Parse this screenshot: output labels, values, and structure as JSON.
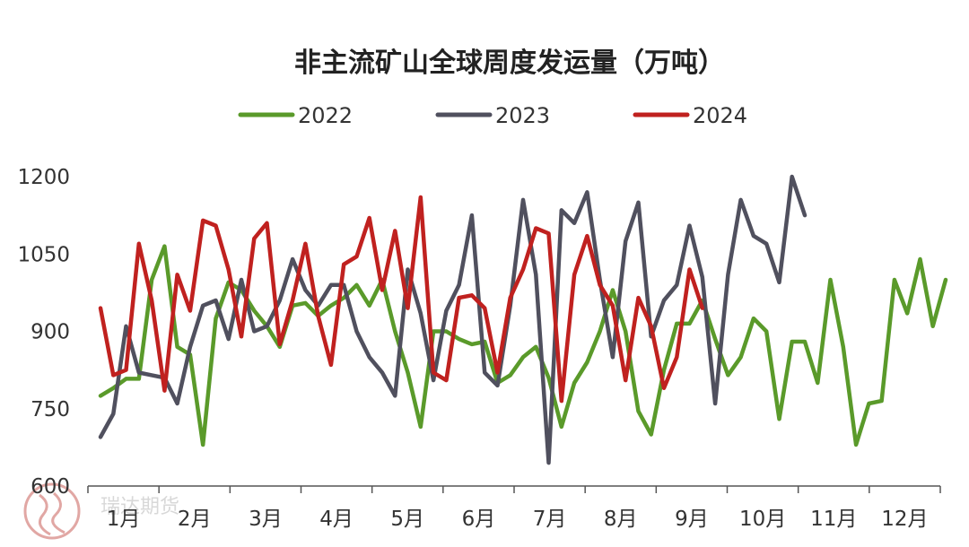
{
  "chart_data": {
    "type": "line",
    "title": "非主流矿山全球周度发运量（万吨）",
    "xlabel": "",
    "ylabel": "",
    "ylim": [
      600,
      1200
    ],
    "yticks": [
      600,
      750,
      900,
      1050,
      1200
    ],
    "x_tick_labels": [
      "1月",
      "2月",
      "3月",
      "4月",
      "5月",
      "6月",
      "7月",
      "8月",
      "9月",
      "10月",
      "11月",
      "12月"
    ],
    "x_weeks": 52,
    "legend_position": "top",
    "grid": false,
    "series": [
      {
        "name": "2022",
        "color": "#5a9a2a",
        "values": [
          775,
          790,
          808,
          808,
          1000,
          1065,
          870,
          855,
          680,
          925,
          995,
          980,
          940,
          910,
          870,
          950,
          955,
          930,
          950,
          965,
          990,
          950,
          1000,
          900,
          820,
          715,
          900,
          900,
          885,
          875,
          880,
          800,
          815,
          850,
          870,
          810,
          715,
          800,
          840,
          900,
          980,
          900,
          745,
          700,
          825,
          915,
          915,
          960,
          885,
          815,
          850,
          925,
          900,
          730,
          880,
          880,
          800,
          1000,
          870,
          680,
          760,
          765,
          1000,
          935,
          1040,
          910,
          1000
        ]
      },
      {
        "name": "2023",
        "color": "#50505e",
        "values": [
          695,
          740,
          910,
          820,
          815,
          810,
          760,
          870,
          950,
          960,
          885,
          1000,
          900,
          910,
          960,
          1040,
          980,
          950,
          990,
          990,
          900,
          850,
          820,
          775,
          1020,
          935,
          805,
          940,
          990,
          1125,
          820,
          795,
          950,
          1155,
          1010,
          645,
          1135,
          1110,
          1170,
          1000,
          850,
          1075,
          1150,
          890,
          960,
          990,
          1105,
          1005,
          760,
          1010,
          1155,
          1085,
          1070,
          995,
          1200,
          1125
        ]
      },
      {
        "name": "2024",
        "color": "#c0211f",
        "values": [
          945,
          815,
          825,
          1070,
          960,
          785,
          1010,
          940,
          1115,
          1105,
          1020,
          890,
          1080,
          1110,
          875,
          960,
          1070,
          930,
          835,
          1030,
          1045,
          1120,
          980,
          1095,
          945,
          1160,
          820,
          805,
          965,
          970,
          945,
          820,
          965,
          1020,
          1100,
          1090,
          765,
          1010,
          1085,
          990,
          950,
          805,
          965,
          910,
          790,
          850,
          1020,
          945
        ]
      }
    ]
  },
  "watermark": {
    "text": "瑞达期货"
  }
}
